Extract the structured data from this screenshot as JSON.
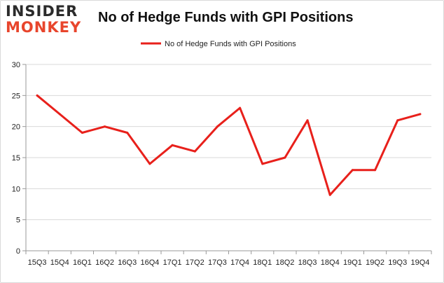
{
  "logo": {
    "line1": "INSIDER",
    "line2": "MONKEY"
  },
  "chart_data": {
    "type": "line",
    "title": "No of Hedge Funds with GPI Positions",
    "xlabel": "",
    "ylabel": "",
    "categories": [
      "15Q3",
      "15Q4",
      "16Q1",
      "16Q2",
      "16Q3",
      "16Q4",
      "17Q1",
      "17Q2",
      "17Q3",
      "17Q4",
      "18Q1",
      "18Q2",
      "18Q3",
      "18Q4",
      "19Q1",
      "19Q2",
      "19Q3",
      "19Q4"
    ],
    "series": [
      {
        "name": "No of Hedge Funds with GPI Positions",
        "color": "#e8201b",
        "values": [
          25,
          22,
          19,
          20,
          19,
          14,
          17,
          16,
          20,
          23,
          14,
          15,
          21,
          9,
          13,
          13,
          21,
          22
        ]
      }
    ],
    "ylim": [
      0,
      30
    ],
    "yticks": [
      0,
      5,
      10,
      15,
      20,
      25,
      30
    ],
    "grid": true,
    "legend": "top-center"
  }
}
